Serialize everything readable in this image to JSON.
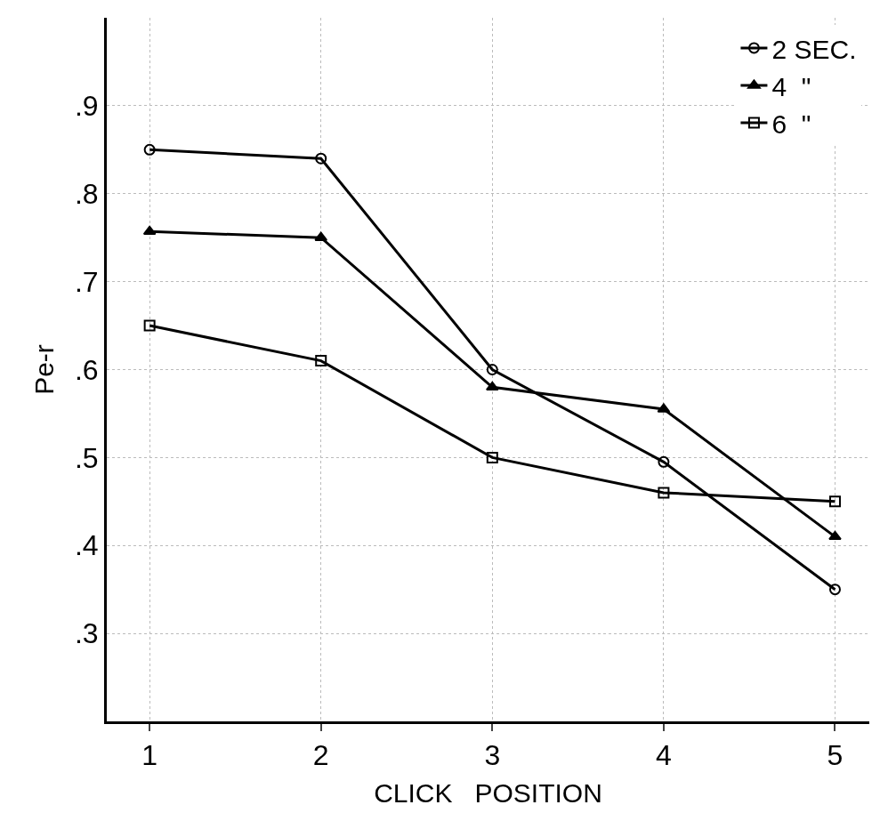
{
  "chart_data": {
    "type": "line",
    "xlabel": "CLICK   POSITION",
    "ylabel": "Pe-r",
    "x": [
      1,
      2,
      3,
      4,
      5
    ],
    "series": [
      {
        "name": "2 SEC.",
        "color": "#000000",
        "marker": "circle",
        "values": [
          0.85,
          0.84,
          0.6,
          0.495,
          0.35
        ]
      },
      {
        "name": "4  \"",
        "color": "#000000",
        "marker": "triangle",
        "values": [
          0.757,
          0.75,
          0.58,
          0.555,
          0.41
        ]
      },
      {
        "name": "6  \"",
        "color": "#000000",
        "marker": "square",
        "values": [
          0.65,
          0.61,
          0.5,
          0.46,
          0.45
        ]
      }
    ],
    "xlim": [
      0.75,
      5.2
    ],
    "xticks": [
      1,
      2,
      3,
      4,
      5
    ],
    "ylim": [
      0.2,
      1.0
    ],
    "yticks": [
      {
        "value": 0.3,
        "label": ".3"
      },
      {
        "value": 0.4,
        "label": ".4"
      },
      {
        "value": 0.5,
        "label": ".5"
      },
      {
        "value": 0.6,
        "label": ".6"
      },
      {
        "value": 0.7,
        "label": ".7"
      },
      {
        "value": 0.8,
        "label": ".8"
      },
      {
        "value": 0.9,
        "label": ".9"
      }
    ],
    "grid": true,
    "legend": "top right",
    "line_style": "solid"
  }
}
